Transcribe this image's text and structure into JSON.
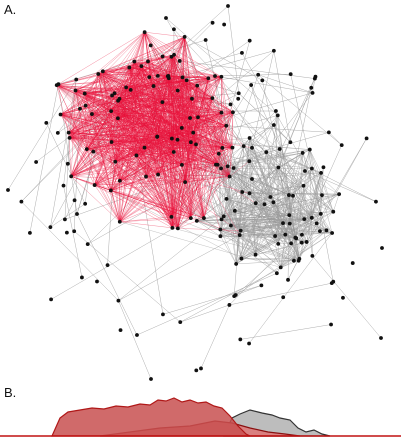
{
  "panels": {
    "a": "A.",
    "b": "B."
  },
  "network": {
    "highlight_color": "#e8123c",
    "background_edge_color": "#9a9a9a",
    "node_color": "#111111"
  },
  "distribution": {
    "series": [
      {
        "fill": "#c85050",
        "stroke": "#b01818"
      },
      {
        "fill": "#d98080",
        "stroke": "#8a1010"
      },
      {
        "fill": "#bdbdbd",
        "stroke": "#333333"
      }
    ],
    "baseline_color": "#c01010"
  }
}
